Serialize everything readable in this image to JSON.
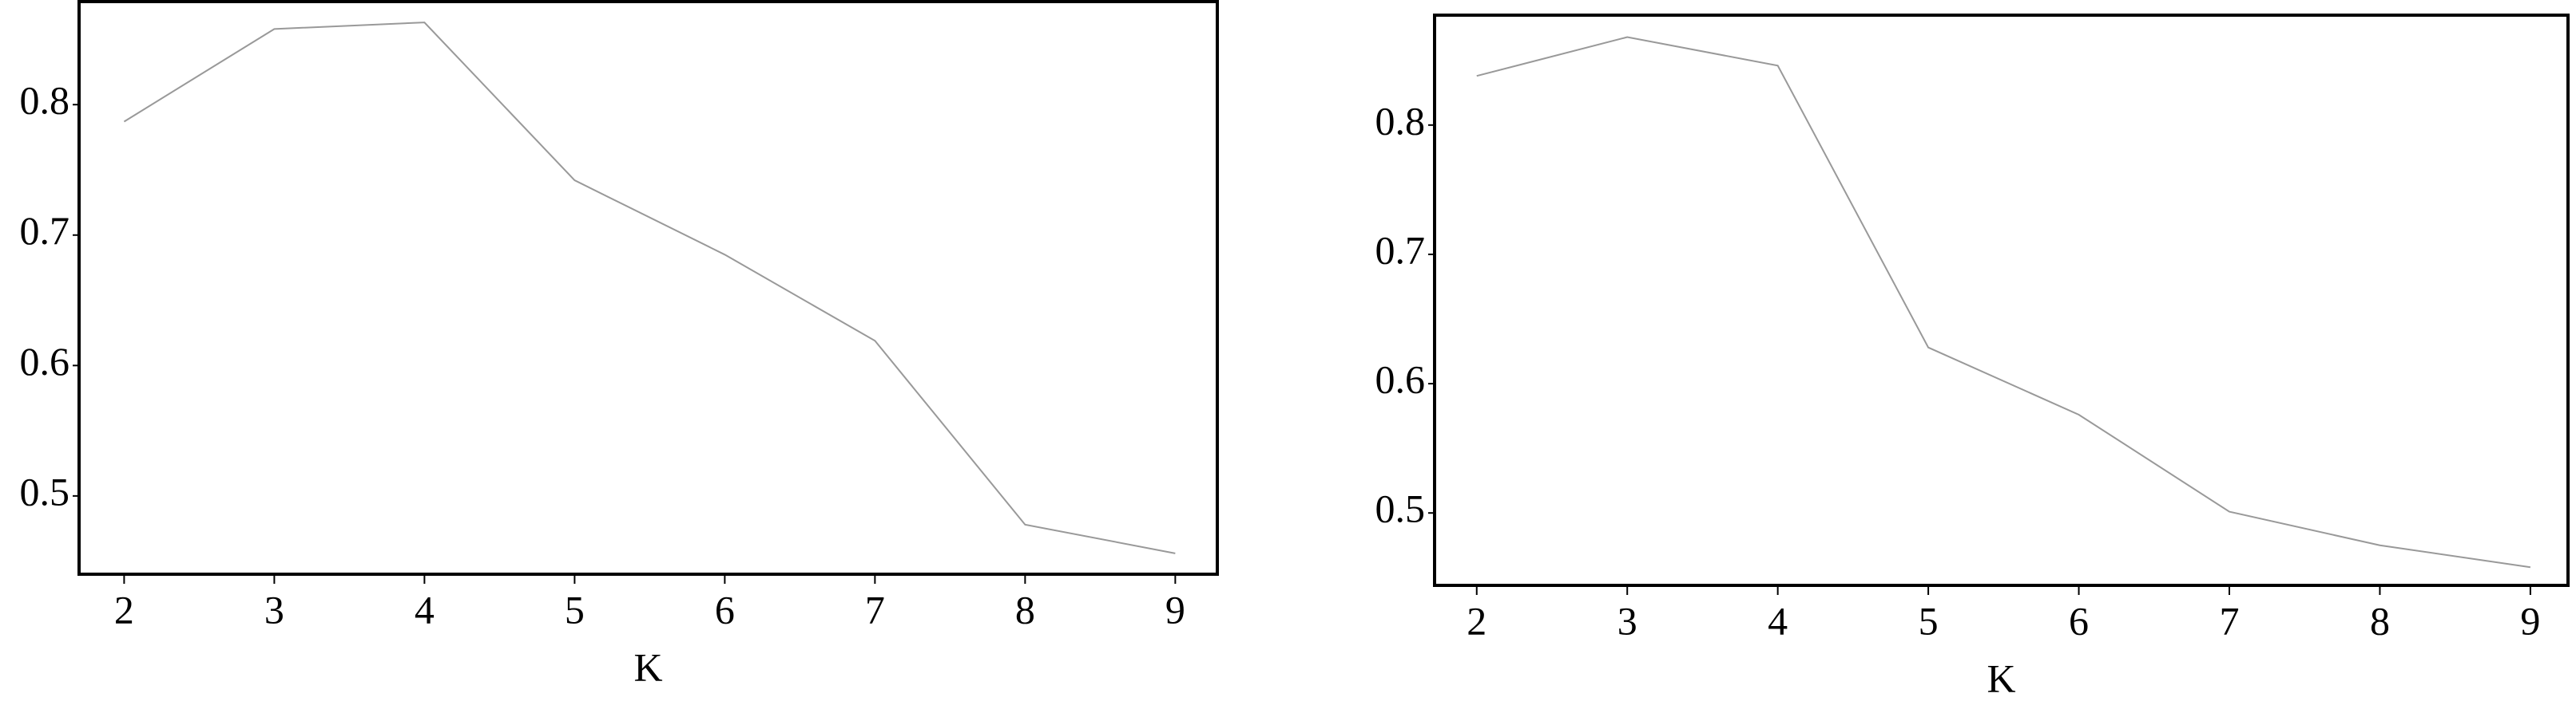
{
  "chart_data": [
    {
      "type": "line",
      "xlabel": "K",
      "x": [
        2,
        3,
        4,
        5,
        6,
        7,
        8,
        9
      ],
      "values": [
        0.787,
        0.858,
        0.863,
        0.742,
        0.685,
        0.619,
        0.478,
        0.456
      ],
      "color": "#999999",
      "xlim": [
        1.7,
        9.28
      ],
      "ylim": [
        0.44,
        0.879
      ],
      "xticks": [
        2,
        3,
        4,
        5,
        6,
        7,
        8,
        9
      ],
      "yticks": [
        0.5,
        0.6,
        0.7,
        0.8
      ]
    },
    {
      "type": "line",
      "xlabel": "K",
      "x": [
        2,
        3,
        4,
        5,
        6,
        7,
        8,
        9
      ],
      "values": [
        0.838,
        0.868,
        0.846,
        0.628,
        0.576,
        0.501,
        0.475,
        0.458
      ],
      "color": "#999999",
      "xlim": [
        1.72,
        9.25
      ],
      "ylim": [
        0.444,
        0.885
      ],
      "xticks": [
        2,
        3,
        4,
        5,
        6,
        7,
        8,
        9
      ],
      "yticks": [
        0.5,
        0.6,
        0.7,
        0.8
      ]
    }
  ]
}
